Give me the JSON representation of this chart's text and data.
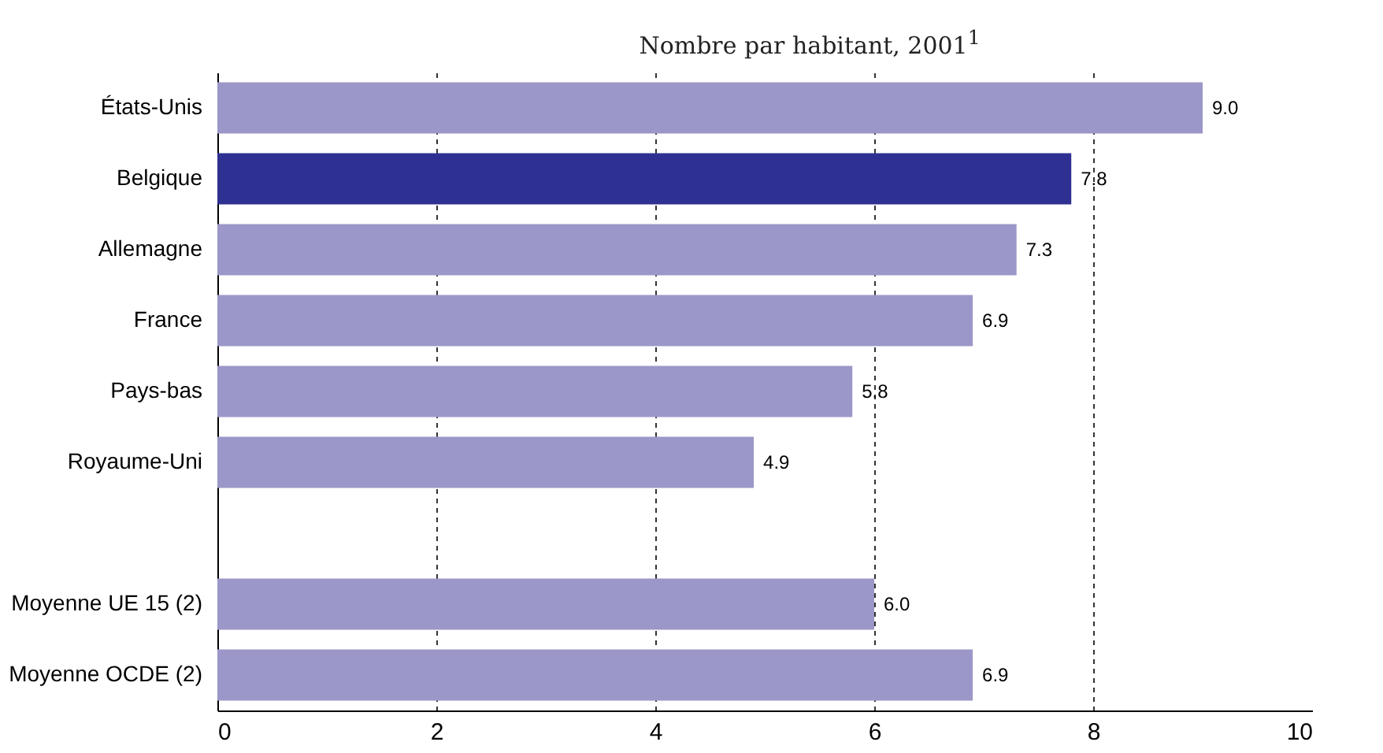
{
  "chart_data": {
    "type": "bar",
    "orientation": "horizontal",
    "subtitle": "Nombre par habitant, 2001$^{1}$",
    "categories": [
      "États-Unis",
      "Belgique",
      "Allemagne",
      "France",
      "Pays-bas",
      "Royaume-Uni",
      null,
      "Moyenne UE 15 (2)",
      "Moyenne OCDE (2)"
    ],
    "values": [
      9.0,
      7.8,
      7.3,
      6.9,
      5.8,
      4.9,
      null,
      6.0,
      6.9
    ],
    "colors": [
      "#9b97c8",
      "#2e3192",
      "#9b97c8",
      "#9b97c8",
      "#9b97c8",
      "#9b97c8",
      "#9b97c8",
      "#9b97c8",
      "#9b97c8"
    ],
    "value_labels": [
      "9.0",
      "7.8",
      "7.3",
      "6.9",
      "5.8",
      "4.9",
      null,
      "6.0",
      "6.9"
    ],
    "xlim": [
      0,
      10
    ],
    "xticks": [
      0,
      2,
      4,
      6,
      8,
      10
    ],
    "grid": "x"
  }
}
